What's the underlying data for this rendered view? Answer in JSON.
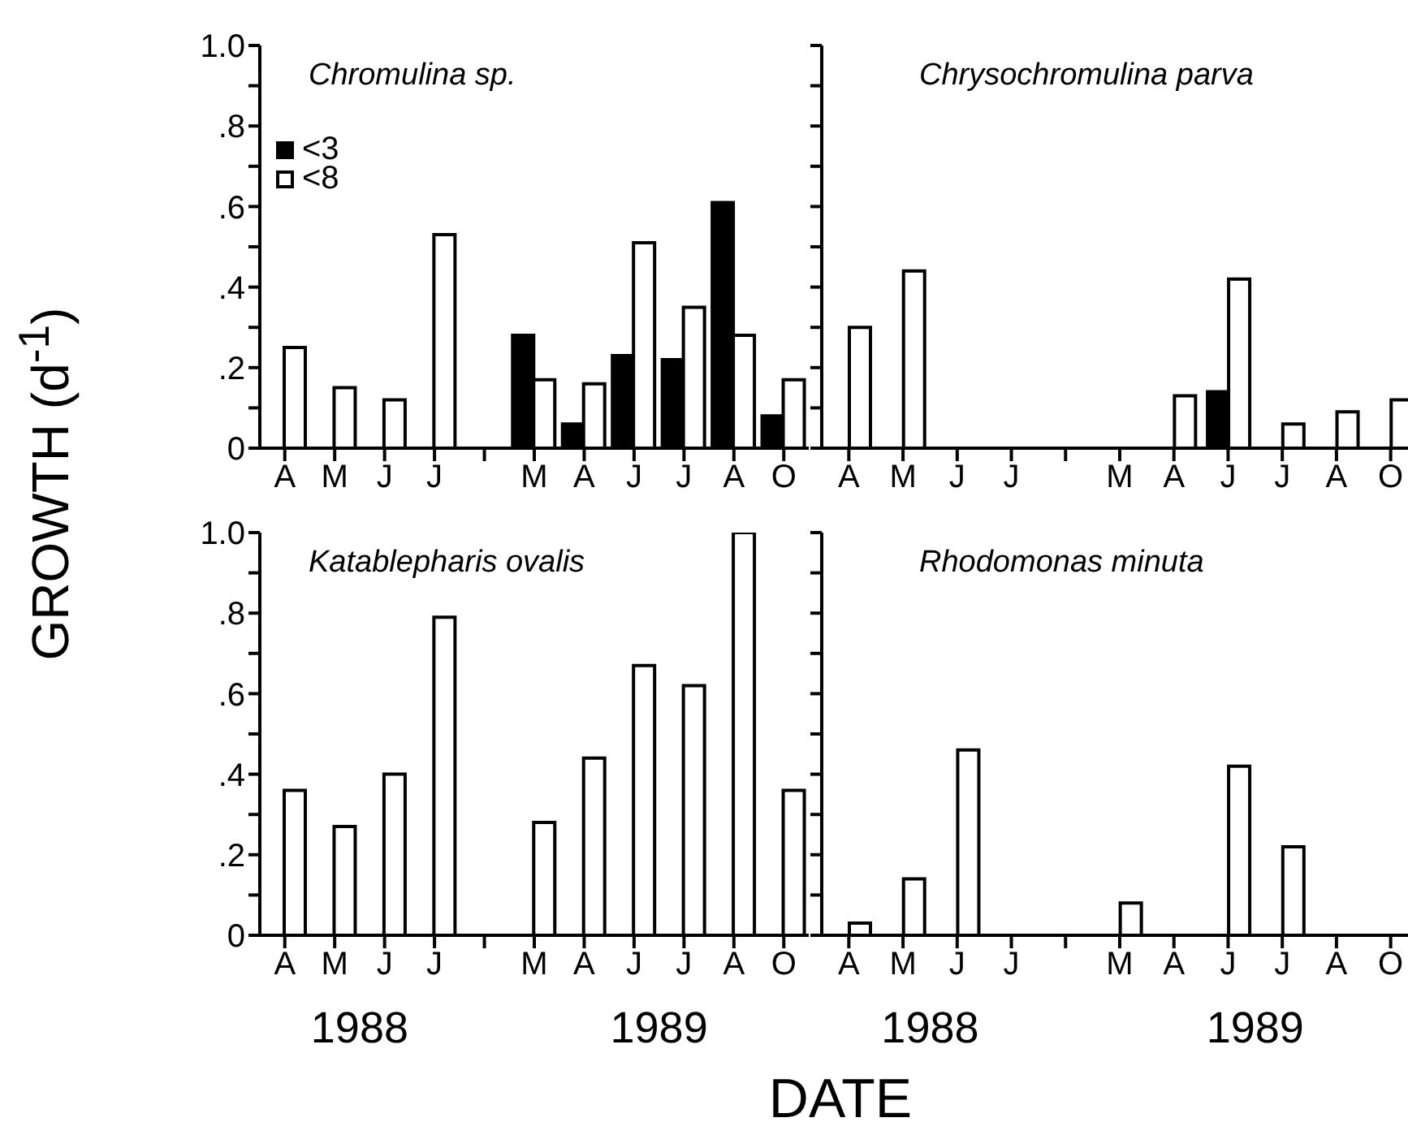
{
  "chart_data": [
    {
      "type": "bar",
      "title": "Chromulina sp.",
      "ylabel": "GROWTH (d$^{-1}$)",
      "categories": [
        "A",
        "M",
        "J",
        "J",
        null,
        "M",
        "A",
        "J",
        "J",
        "A",
        "O"
      ],
      "series": [
        {
          "name": "<3",
          "color": "#000000",
          "values": [
            null,
            null,
            null,
            null,
            null,
            0.28,
            0.06,
            0.23,
            0.22,
            0.61,
            0.08
          ]
        },
        {
          "name": "<8",
          "color": "#ffffff",
          "values": [
            0.25,
            0.15,
            0.12,
            0.53,
            null,
            0.17,
            0.16,
            0.51,
            0.35,
            0.28,
            0.17
          ]
        }
      ],
      "ylim": [
        0,
        1
      ],
      "yticks": [
        0,
        {
          "value": 0.1,
          "label": null
        },
        {
          "value": 0.2,
          "label": ".2"
        },
        {
          "value": 0.3,
          "label": null
        },
        {
          "value": 0.4,
          "label": ".4"
        },
        {
          "value": 0.5,
          "label": null
        },
        {
          "value": 0.6,
          "label": ".6"
        },
        {
          "value": 0.7,
          "label": null
        },
        {
          "value": 0.8,
          "label": ".8"
        },
        {
          "value": 0.9,
          "label": null
        },
        {
          "value": 1,
          "label": "1.0"
        }
      ],
      "legend": "top left",
      "grid": false
    },
    {
      "type": "bar",
      "title": "Chrysochromulina parva",
      "categories": [
        "A",
        "M",
        "J",
        "J",
        null,
        "M",
        "A",
        "J",
        "J",
        "A",
        "O"
      ],
      "series": [
        {
          "color": "#000000",
          "values": [
            null,
            null,
            null,
            null,
            null,
            null,
            null,
            0.14,
            null,
            null,
            null
          ]
        },
        {
          "color": "#ffffff",
          "values": [
            0.3,
            0.44,
            null,
            null,
            null,
            null,
            0.13,
            0.42,
            0.06,
            0.09,
            0.12
          ]
        }
      ],
      "ylim": [
        0,
        1
      ],
      "yticks": [
        {
          "value": 0,
          "label": null
        },
        {
          "value": 0.1,
          "label": null
        },
        {
          "value": 0.2,
          "label": null
        },
        {
          "value": 0.3,
          "label": null
        },
        {
          "value": 0.4,
          "label": null
        },
        {
          "value": 0.5,
          "label": null
        },
        {
          "value": 0.6,
          "label": null
        },
        {
          "value": 0.7,
          "label": null
        },
        {
          "value": 0.8,
          "label": null
        },
        {
          "value": 0.9,
          "label": null
        },
        {
          "value": 1,
          "label": null
        }
      ],
      "tick_labels": "x",
      "grid": false
    },
    {
      "type": "bar",
      "title": "Katablepharis ovalis",
      "xlabel": "DATE",
      "categories": [
        "A",
        "M",
        "J",
        "J",
        null,
        "M",
        "A",
        "J",
        "J",
        "A",
        "O"
      ],
      "series": [
        {
          "color": "#ffffff",
          "values": [
            0.36,
            0.27,
            0.4,
            0.79,
            null,
            0.28,
            0.44,
            0.67,
            0.62,
            1.0,
            0.36
          ]
        }
      ],
      "ylim": [
        0,
        1
      ],
      "yticks": [
        0,
        {
          "value": 0.1,
          "label": null
        },
        {
          "value": 0.2,
          "label": ".2"
        },
        {
          "value": 0.3,
          "label": null
        },
        {
          "value": 0.4,
          "label": ".4"
        },
        {
          "value": 0.5,
          "label": null
        },
        {
          "value": 0.6,
          "label": ".6"
        },
        {
          "value": 0.7,
          "label": null
        },
        {
          "value": 0.8,
          "label": ".8"
        },
        {
          "value": 0.9,
          "label": null
        },
        {
          "value": 1,
          "label": "1.0"
        }
      ],
      "annotations": [
        "1988",
        "1989"
      ],
      "grid": false
    },
    {
      "type": "bar",
      "title": "Rhodomonas minuta",
      "categories": [
        "A",
        "M",
        "J",
        "J",
        null,
        "M",
        "A",
        "J",
        "J",
        "A",
        "O"
      ],
      "series": [
        {
          "color": "#ffffff",
          "values": [
            0.03,
            0.14,
            0.46,
            null,
            null,
            0.08,
            null,
            0.42,
            0.22,
            null,
            null
          ]
        }
      ],
      "ylim": [
        0,
        1
      ],
      "yticks": [
        {
          "value": 0,
          "label": null
        },
        {
          "value": 0.1,
          "label": null
        },
        {
          "value": 0.2,
          "label": null
        },
        {
          "value": 0.3,
          "label": null
        },
        {
          "value": 0.4,
          "label": null
        },
        {
          "value": 0.5,
          "label": null
        },
        {
          "value": 0.6,
          "label": null
        },
        {
          "value": 0.7,
          "label": null
        },
        {
          "value": 0.8,
          "label": null
        },
        {
          "value": 0.9,
          "label": null
        },
        {
          "value": 1,
          "label": null
        }
      ],
      "annotations": [
        "1988",
        "1989"
      ],
      "tick_labels": "x",
      "grid": false
    }
  ]
}
